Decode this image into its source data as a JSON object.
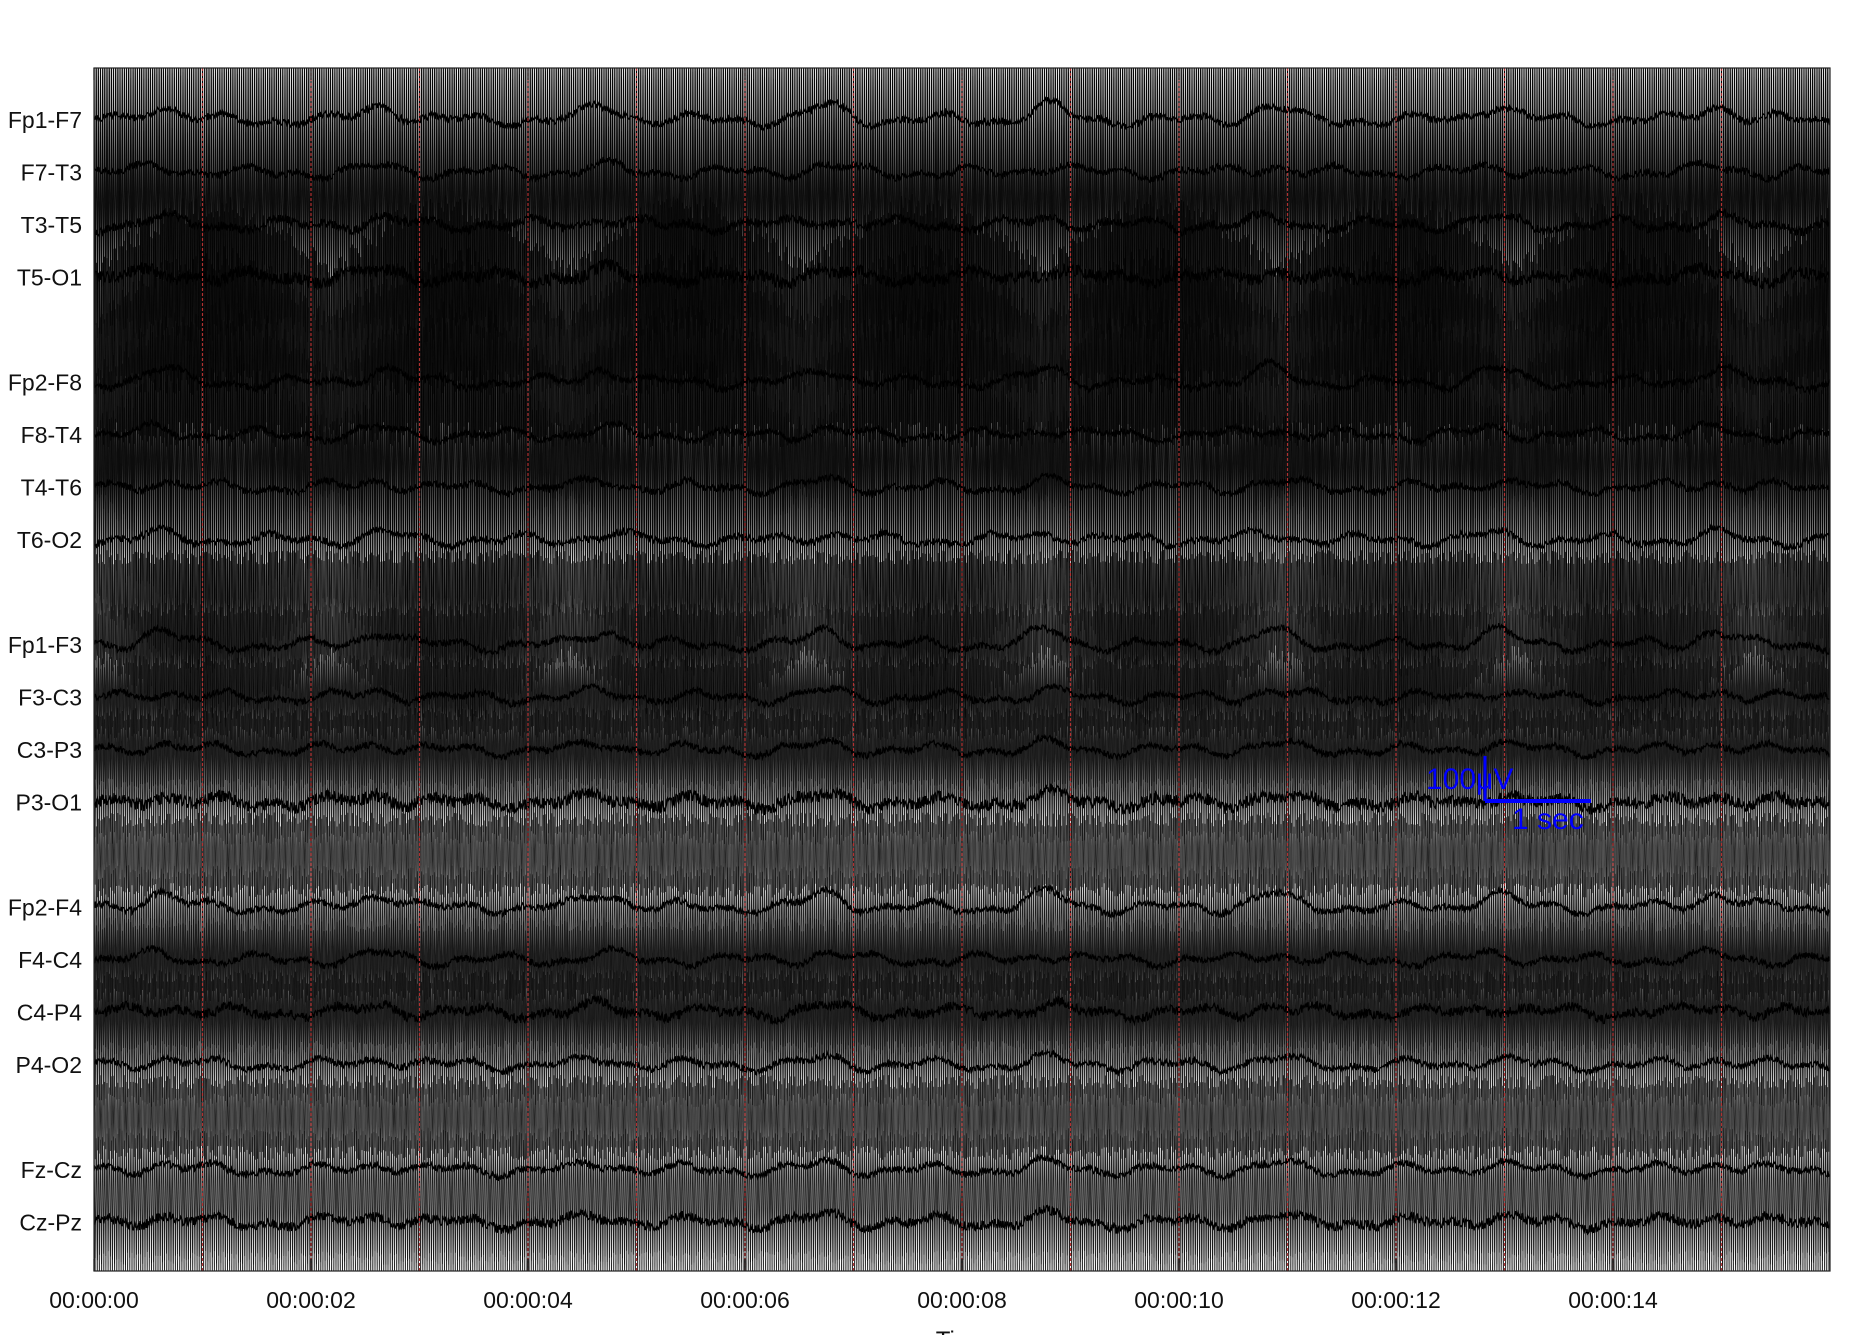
{
  "chart_data": {
    "type": "line",
    "xlabel": "Time",
    "xlim": [
      0,
      16
    ],
    "x_unit": "seconds",
    "x_ticks": [
      {
        "value": 0,
        "label": "00:00:00"
      },
      {
        "value": 2,
        "label": "00:00:02"
      },
      {
        "value": 4,
        "label": "00:00:04"
      },
      {
        "value": 6,
        "label": "00:00:06"
      },
      {
        "value": 8,
        "label": "00:00:08"
      },
      {
        "value": 10,
        "label": "00:00:10"
      },
      {
        "value": 12,
        "label": "00:00:12"
      },
      {
        "value": 14,
        "label": "00:00:14"
      }
    ],
    "channel_groups": [
      [
        "Fp1-F7",
        "F7-T3",
        "T3-T5",
        "T5-O1"
      ],
      [
        "Fp2-F8",
        "F8-T4",
        "T4-T6",
        "T6-O2"
      ],
      [
        "Fp1-F3",
        "F3-C3",
        "C3-P3",
        "P3-O1"
      ],
      [
        "Fp2-F4",
        "F4-C4",
        "C4-P4",
        "P4-O2"
      ],
      [
        "Fz-Cz",
        "Cz-Pz"
      ]
    ],
    "second_markers": [
      1,
      2,
      3,
      4,
      5,
      6,
      7,
      8,
      9,
      10,
      11,
      12,
      13,
      14,
      15
    ],
    "scale_bar": {
      "amplitude_label": "100μV",
      "time_label": "1 sec",
      "color": "#0000ff"
    },
    "trace_color": "#000000",
    "marker_color": "#b03030",
    "background": "#ffffff",
    "grid": false
  }
}
